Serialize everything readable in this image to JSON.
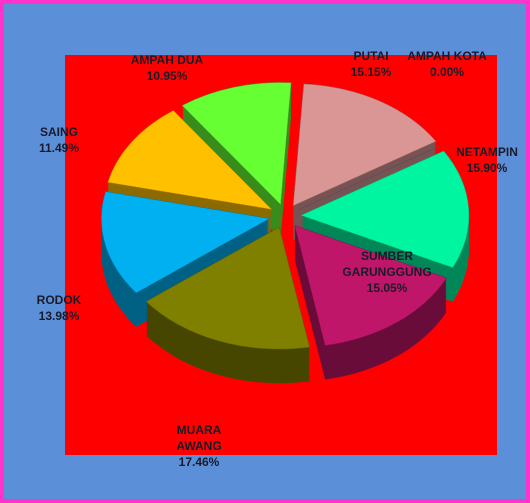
{
  "chart_data": {
    "type": "pie",
    "categories": [
      "PUTAI",
      "AMPAH KOTA",
      "NETAMPIN",
      "SUMBER GARUNGGUNG",
      "MUARA AWANG",
      "RODOK",
      "SAING",
      "AMPAH DUA"
    ],
    "values": [
      15.15,
      0.0,
      15.9,
      15.05,
      17.46,
      13.98,
      11.49,
      10.95
    ],
    "value_labels": [
      "15.15%",
      "0.00%",
      "15.90%",
      "15.05%",
      "17.46%",
      "13.98%",
      "11.49%",
      "10.95%"
    ],
    "colors": [
      "#d99694",
      "#8064a2",
      "#00f5a0",
      "#c0166a",
      "#808000",
      "#00b0f0",
      "#ffc000",
      "#66ff33"
    ]
  }
}
